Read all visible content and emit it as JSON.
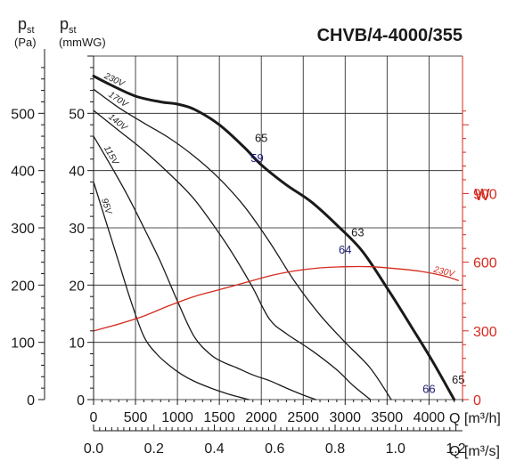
{
  "chart_data": {
    "type": "line",
    "title": "CHVB/4-4000/355",
    "axes": {
      "y_pa": {
        "label_main": "p",
        "label_sub": "st",
        "unit": "(Pa)",
        "ticks": [
          "0",
          "100",
          "200",
          "300",
          "400",
          "500"
        ],
        "ylim": [
          0,
          600
        ]
      },
      "y_mmwg": {
        "label_main": "p",
        "label_sub": "st",
        "unit": "(mmWG)",
        "ticks": [
          "0",
          "10",
          "20",
          "30",
          "40",
          "50"
        ],
        "ylim": [
          0,
          60
        ]
      },
      "y_w": {
        "label": "W",
        "ticks": [
          "0",
          "300",
          "600",
          "900"
        ],
        "ylim": [
          0,
          1500
        ]
      },
      "x_m3h": {
        "label": "Q [m³/h]",
        "ticks": [
          "0",
          "500",
          "1000",
          "1500",
          "2000",
          "2500",
          "3000",
          "3500",
          "4000"
        ],
        "xlim": [
          0,
          4400
        ]
      },
      "x_m3s": {
        "label": "Q [m³/s]",
        "ticks": [
          "0.0",
          "0.2",
          "0.4",
          "0.6",
          "0.8",
          "1.0",
          "1.2"
        ],
        "xlim": [
          0,
          1.222
        ]
      }
    },
    "grid": true,
    "series": [
      {
        "name": "230V",
        "axis": "pa",
        "emphasis": true,
        "x": [
          0,
          200,
          500,
          800,
          1000,
          1200,
          1500,
          1800,
          2000,
          2300,
          2600,
          2900,
          3200,
          3500,
          3800,
          4050,
          4300
        ],
        "y": [
          565,
          550,
          530,
          520,
          516,
          507,
          480,
          440,
          410,
          375,
          345,
          305,
          260,
          195,
          125,
          65,
          0
        ]
      },
      {
        "name": "170V",
        "axis": "pa",
        "x": [
          0,
          300,
          600,
          900,
          1200,
          1500,
          1800,
          2100,
          2400,
          2700,
          3000,
          3300,
          3550
        ],
        "y": [
          542,
          510,
          483,
          457,
          425,
          386,
          337,
          275,
          206,
          148,
          100,
          55,
          0
        ]
      },
      {
        "name": "140V",
        "axis": "pa",
        "x": [
          0,
          300,
          600,
          900,
          1200,
          1500,
          1700,
          1900,
          2100,
          2300,
          2600,
          2900,
          3100,
          3300
        ],
        "y": [
          505,
          470,
          435,
          395,
          350,
          290,
          245,
          195,
          140,
          115,
          86,
          52,
          24,
          0
        ]
      },
      {
        "name": "115V",
        "axis": "pa",
        "x": [
          0,
          200,
          400,
          600,
          800,
          1000,
          1200,
          1400,
          1550,
          1700,
          1900,
          2100,
          2300,
          2500,
          2650
        ],
        "y": [
          460,
          410,
          358,
          300,
          240,
          172,
          110,
          78,
          65,
          56,
          43,
          33,
          20,
          8,
          0
        ]
      },
      {
        "name": "95V",
        "axis": "pa",
        "x": [
          0,
          150,
          300,
          450,
          600,
          750,
          900,
          1050,
          1200,
          1400,
          1600,
          1850
        ],
        "y": [
          380,
          310,
          240,
          170,
          110,
          80,
          60,
          44,
          32,
          20,
          10,
          0
        ]
      },
      {
        "name": "230V",
        "axis": "w",
        "color": "#d42a1e",
        "x": [
          0,
          300,
          600,
          900,
          1200,
          1500,
          1800,
          2100,
          2400,
          2700,
          3000,
          3300,
          3600,
          3900,
          4200,
          4350
        ],
        "y": [
          300,
          330,
          365,
          410,
          450,
          480,
          510,
          540,
          562,
          575,
          580,
          580,
          572,
          560,
          538,
          520
        ]
      }
    ],
    "annotations": [
      {
        "text": "65",
        "x": 2000,
        "y": 450,
        "color": "#1a1a1a"
      },
      {
        "text": "59",
        "x": 1950,
        "y": 415,
        "color": "#1c1c78"
      },
      {
        "text": "63",
        "x": 3150,
        "y": 285,
        "color": "#1a1a1a"
      },
      {
        "text": "64",
        "x": 3000,
        "y": 255,
        "color": "#1c1c78"
      },
      {
        "text": "66",
        "x": 4000,
        "y": 12,
        "color": "#1c1c78"
      },
      {
        "text": "65",
        "x": 4350,
        "y": 28,
        "color": "#1a1a1a"
      }
    ]
  },
  "colors": {
    "axis_red": "#d42a1e",
    "curve": "#1a1a1a",
    "power": "#d42a1e",
    "noise_label": "#1c1c78",
    "grid": "#1a1a1a"
  }
}
